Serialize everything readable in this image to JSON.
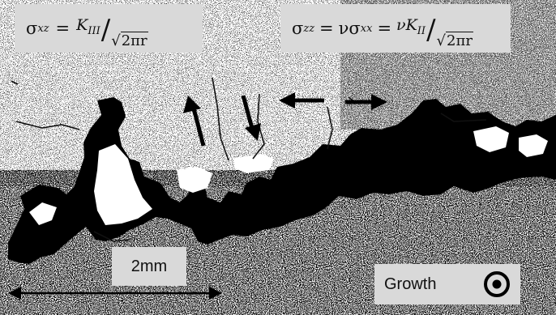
{
  "equation_left": {
    "lhs_symbol": "σ",
    "lhs_sub": "xz",
    "eq": "=",
    "num_symbol": "K",
    "num_sub": "III",
    "den": "√",
    "den_inner": "2πr"
  },
  "equation_right": {
    "lhs_symbol": "σ",
    "lhs_sub": "zz",
    "eq1": "=",
    "mid": "νσ",
    "mid_sub": "xx",
    "eq2": "=",
    "num": "νK",
    "num_sub": "II",
    "den": "√",
    "den_inner": "2πr"
  },
  "scale_label": "2mm",
  "growth_label": "Growth",
  "colors": {
    "crack": "#000000",
    "background": "#ffffff",
    "label_box": "#d9d9d9"
  }
}
